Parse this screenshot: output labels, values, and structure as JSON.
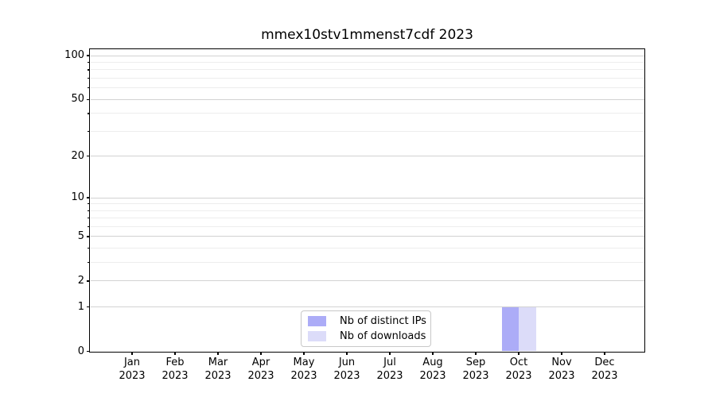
{
  "chart_data": {
    "type": "bar",
    "title": "mmex10stv1mmenst7cdf 2023",
    "categories": [
      {
        "month": "Jan",
        "year": "2023"
      },
      {
        "month": "Feb",
        "year": "2023"
      },
      {
        "month": "Mar",
        "year": "2023"
      },
      {
        "month": "Apr",
        "year": "2023"
      },
      {
        "month": "May",
        "year": "2023"
      },
      {
        "month": "Jun",
        "year": "2023"
      },
      {
        "month": "Jul",
        "year": "2023"
      },
      {
        "month": "Aug",
        "year": "2023"
      },
      {
        "month": "Sep",
        "year": "2023"
      },
      {
        "month": "Oct",
        "year": "2023"
      },
      {
        "month": "Nov",
        "year": "2023"
      },
      {
        "month": "Dec",
        "year": "2023"
      }
    ],
    "series": [
      {
        "name": "Nb of distinct IPs",
        "color": "#acacf7",
        "values": [
          0,
          0,
          0,
          0,
          0,
          0,
          0,
          0,
          0,
          1,
          0,
          0
        ]
      },
      {
        "name": "Nb of downloads",
        "color": "#dcdcf9",
        "values": [
          0,
          0,
          0,
          0,
          0,
          0,
          0,
          0,
          0,
          1,
          0,
          0
        ]
      }
    ],
    "y_axis": {
      "scale": "log1p",
      "major_ticks": [
        0,
        1,
        2,
        5,
        10,
        20,
        50,
        100
      ],
      "minor_ticks": [
        3,
        4,
        6,
        7,
        8,
        9,
        30,
        40,
        60,
        70,
        80,
        90
      ],
      "max": 110
    },
    "xlabel": "",
    "ylabel": "",
    "grid": {
      "major_color": "#d2d2d2",
      "minor_color": "#ededed"
    },
    "legend_position": "lower center"
  }
}
